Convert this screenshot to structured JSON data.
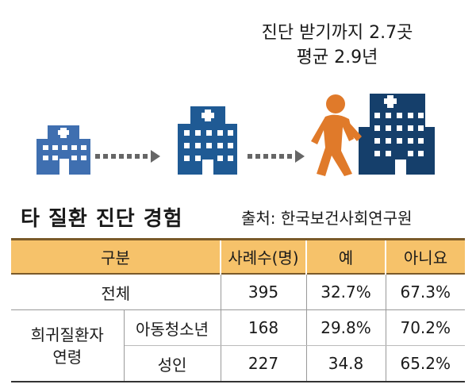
{
  "caption": {
    "line1": "진단 받기까지 2.7곳",
    "line2": "평균 2.9년"
  },
  "title": "타 질환 진단 경험",
  "source": "출처: 한국보건사회연구원",
  "colors": {
    "building": "#3f6fb0",
    "building_dark": "#1f4f86",
    "person": "#e07a2a",
    "header_bg": "#f6c26a"
  },
  "table": {
    "headers": [
      "구분",
      "사례수(명)",
      "예",
      "아니요"
    ],
    "total": {
      "label": "전체",
      "cases": "395",
      "yes": "32.7%",
      "no": "67.3%"
    },
    "group_line1": "희귀질환자",
    "group_line2": "연령",
    "teen": {
      "label": "아동청소년",
      "cases": "168",
      "yes": "29.8%",
      "no": "70.2%"
    },
    "adult": {
      "label": "성인",
      "cases": "227",
      "yes": "34.8",
      "no": "65.2%"
    }
  }
}
